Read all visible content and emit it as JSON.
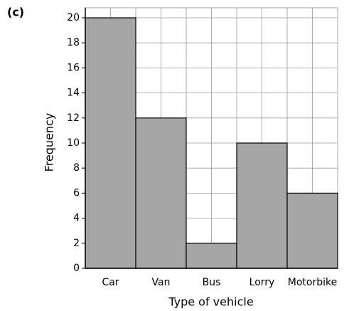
{
  "chart_data": {
    "type": "bar",
    "label": "(c)",
    "x_label": "Type of vehicle",
    "y_label": "Frequency",
    "categories": [
      "Car",
      "Van",
      "Bus",
      "Lorry",
      "Motorbike"
    ],
    "values": [
      20,
      12,
      2,
      10,
      6
    ],
    "color": "#a6a6a6",
    "ylim": [
      0,
      20.8
    ],
    "yticks": [
      0,
      2,
      4,
      6,
      8,
      10,
      12,
      14,
      16,
      18,
      20
    ],
    "grid": true
  }
}
